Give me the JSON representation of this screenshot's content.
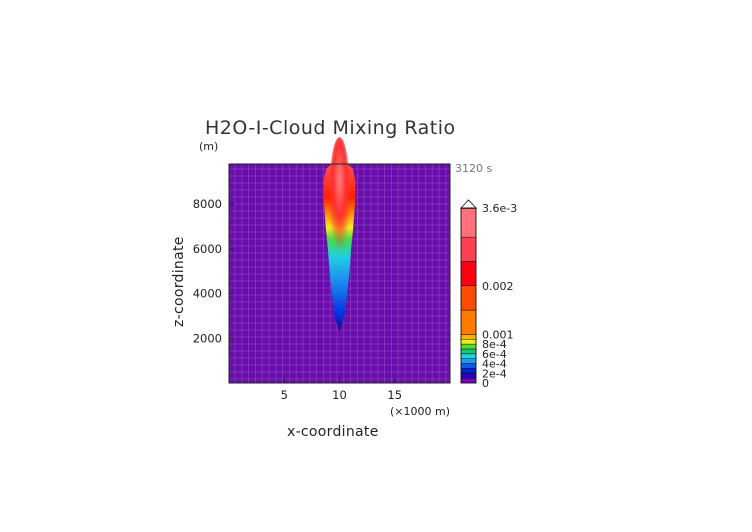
{
  "chart_data": {
    "type": "heatmap",
    "title": "H2O-I-Cloud Mixing Ratio",
    "z_unit": "(m)",
    "xlabel": "x-coordinate",
    "x_unit": "(×1000 m)",
    "ylabel": "z-coordinate",
    "time_label": "3120 s",
    "xlim": [
      0,
      20
    ],
    "ylim": [
      0,
      9800
    ],
    "x_ticks": [
      {
        "value": 5,
        "label": "5"
      },
      {
        "value": 10,
        "label": "10"
      },
      {
        "value": 15,
        "label": "15"
      }
    ],
    "y_ticks": [
      {
        "value": 2000,
        "label": "2000"
      },
      {
        "value": 4000,
        "label": "4000"
      },
      {
        "value": 6000,
        "label": "6000"
      },
      {
        "value": 8000,
        "label": "8000"
      }
    ],
    "grid": true,
    "background_color": "#6a0dad",
    "plume": {
      "center_x": 10,
      "outline": [
        [
          10,
          2300
        ],
        [
          9.55,
          3000
        ],
        [
          9.3,
          4000
        ],
        [
          9.1,
          5000
        ],
        [
          8.95,
          6000
        ],
        [
          8.75,
          7000
        ],
        [
          8.6,
          8000
        ],
        [
          8.55,
          9000
        ],
        [
          8.8,
          9600
        ],
        [
          9.3,
          9800
        ],
        [
          10,
          9800
        ],
        [
          10.7,
          9800
        ],
        [
          11.2,
          9600
        ],
        [
          11.45,
          9000
        ],
        [
          11.4,
          8000
        ],
        [
          11.25,
          7000
        ],
        [
          11.05,
          6000
        ],
        [
          10.9,
          5000
        ],
        [
          10.7,
          4000
        ],
        [
          10.45,
          3000
        ]
      ]
    },
    "colorbar": {
      "levels": [
        {
          "value": 0,
          "color": "#7a00c8"
        },
        {
          "value": 0.0001,
          "color": "#2b00b8"
        },
        {
          "value": 0.0002,
          "color": "#0020d8"
        },
        {
          "value": 0.0003,
          "color": "#0a5cf0"
        },
        {
          "value": 0.0004,
          "color": "#1a9af5"
        },
        {
          "value": 0.0005,
          "color": "#18d8e8"
        },
        {
          "value": 0.0006,
          "color": "#10c878"
        },
        {
          "value": 0.0007,
          "color": "#58e020"
        },
        {
          "value": 0.0008,
          "color": "#e8f020"
        },
        {
          "value": 0.0009,
          "color": "#ffb000"
        },
        {
          "value": 0.001,
          "color": "#ff7a00"
        },
        {
          "value": 0.0015,
          "color": "#ff4a00"
        },
        {
          "value": 0.002,
          "color": "#ff0010"
        },
        {
          "value": 0.0025,
          "color": "#ff4050"
        },
        {
          "value": 0.003,
          "color": "#ff7078"
        },
        {
          "value": 0.0036,
          "color": "#ffb0b0"
        }
      ],
      "tick_labels": [
        {
          "value": 0,
          "label": "0"
        },
        {
          "value": 0.0002,
          "label": "2e-4"
        },
        {
          "value": 0.0004,
          "label": "4e-4"
        },
        {
          "value": 0.0006,
          "label": "6e-4"
        },
        {
          "value": 0.0008,
          "label": "8e-4"
        },
        {
          "value": 0.001,
          "label": "0.001"
        },
        {
          "value": 0.002,
          "label": "0.002"
        },
        {
          "value": 0.0036,
          "label": "3.6e-3"
        }
      ],
      "max_value": 0.0036
    }
  }
}
